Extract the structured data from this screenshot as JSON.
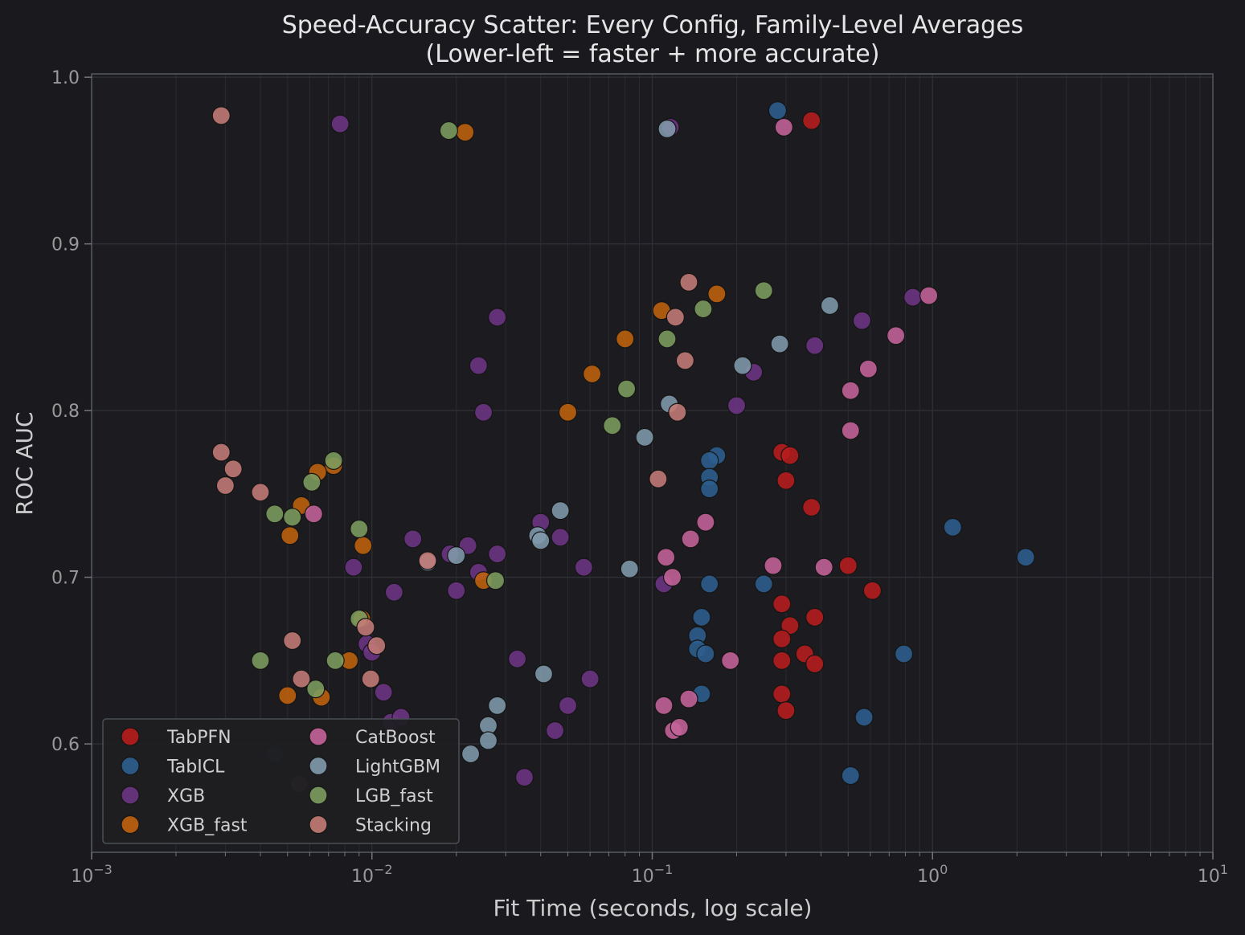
{
  "chart_data": {
    "type": "scatter",
    "title": "Speed-Accuracy Scatter: Every Config, Family-Level Averages",
    "subtitle": "(Lower-left = faster + more accurate)",
    "xlabel": "Fit Time (seconds, log scale)",
    "ylabel": "ROC AUC",
    "xscale": "log",
    "xlim": [
      0.001,
      10
    ],
    "ylim": [
      0.535,
      1.002
    ],
    "xticks": [
      {
        "value": 0.001,
        "base": "10",
        "exp": "−3"
      },
      {
        "value": 0.01,
        "base": "10",
        "exp": "−2"
      },
      {
        "value": 0.1,
        "base": "10",
        "exp": "−1"
      },
      {
        "value": 1,
        "base": "10",
        "exp": "0"
      },
      {
        "value": 10,
        "base": "10",
        "exp": "1"
      }
    ],
    "yticks": [
      {
        "value": 0.6,
        "label": "0.6"
      },
      {
        "value": 0.7,
        "label": "0.7"
      },
      {
        "value": 0.8,
        "label": "0.8"
      },
      {
        "value": 0.9,
        "label": "0.9"
      },
      {
        "value": 1.0,
        "label": "1.0"
      }
    ],
    "grid": true,
    "legend_position": "lower-left",
    "series": [
      {
        "name": "TabPFN",
        "color": "#b71c1c",
        "points": [
          [
            0.37,
            0.974
          ],
          [
            0.29,
            0.775
          ],
          [
            0.31,
            0.773
          ],
          [
            0.3,
            0.758
          ],
          [
            0.37,
            0.742
          ],
          [
            0.5,
            0.707
          ],
          [
            0.61,
            0.692
          ],
          [
            0.29,
            0.684
          ],
          [
            0.31,
            0.671
          ],
          [
            0.38,
            0.676
          ],
          [
            0.29,
            0.663
          ],
          [
            0.29,
            0.65
          ],
          [
            0.35,
            0.654
          ],
          [
            0.38,
            0.648
          ],
          [
            0.29,
            0.63
          ],
          [
            0.3,
            0.62
          ]
        ]
      },
      {
        "name": "TabICL",
        "color": "#2c5f8e",
        "points": [
          [
            0.28,
            0.98
          ],
          [
            0.17,
            0.773
          ],
          [
            0.16,
            0.77
          ],
          [
            0.16,
            0.76
          ],
          [
            0.16,
            0.753
          ],
          [
            1.18,
            0.73
          ],
          [
            2.15,
            0.712
          ],
          [
            0.16,
            0.696
          ],
          [
            0.25,
            0.696
          ],
          [
            0.15,
            0.676
          ],
          [
            0.145,
            0.665
          ],
          [
            0.145,
            0.657
          ],
          [
            0.155,
            0.654
          ],
          [
            0.79,
            0.654
          ],
          [
            0.15,
            0.63
          ],
          [
            0.57,
            0.616
          ],
          [
            0.51,
            0.581
          ]
        ]
      },
      {
        "name": "XGB",
        "color": "#6c3483",
        "points": [
          [
            0.0077,
            0.972
          ],
          [
            0.116,
            0.97
          ],
          [
            0.028,
            0.856
          ],
          [
            0.85,
            0.868
          ],
          [
            0.56,
            0.854
          ],
          [
            0.38,
            0.839
          ],
          [
            0.024,
            0.827
          ],
          [
            0.23,
            0.823
          ],
          [
            0.025,
            0.799
          ],
          [
            0.2,
            0.803
          ],
          [
            0.04,
            0.733
          ],
          [
            0.014,
            0.723
          ],
          [
            0.022,
            0.719
          ],
          [
            0.047,
            0.724
          ],
          [
            0.019,
            0.714
          ],
          [
            0.028,
            0.714
          ],
          [
            0.024,
            0.703
          ],
          [
            0.0086,
            0.706
          ],
          [
            0.057,
            0.706
          ],
          [
            0.012,
            0.691
          ],
          [
            0.02,
            0.692
          ],
          [
            0.11,
            0.696
          ],
          [
            0.0096,
            0.66
          ],
          [
            0.01,
            0.655
          ],
          [
            0.033,
            0.651
          ],
          [
            0.011,
            0.631
          ],
          [
            0.06,
            0.639
          ],
          [
            0.0117,
            0.613
          ],
          [
            0.0127,
            0.616
          ],
          [
            0.05,
            0.623
          ],
          [
            0.045,
            0.608
          ],
          [
            0.035,
            0.58
          ]
        ]
      },
      {
        "name": "XGB_fast",
        "color": "#c0620e",
        "points": [
          [
            0.0215,
            0.967
          ],
          [
            0.17,
            0.87
          ],
          [
            0.108,
            0.86
          ],
          [
            0.08,
            0.843
          ],
          [
            0.061,
            0.822
          ],
          [
            0.05,
            0.799
          ],
          [
            0.0073,
            0.767
          ],
          [
            0.0064,
            0.763
          ],
          [
            0.0056,
            0.743
          ],
          [
            0.0051,
            0.725
          ],
          [
            0.0093,
            0.719
          ],
          [
            0.025,
            0.698
          ],
          [
            0.0092,
            0.675
          ],
          [
            0.0083,
            0.65
          ],
          [
            0.005,
            0.629
          ],
          [
            0.0066,
            0.628
          ]
        ]
      },
      {
        "name": "CatBoost",
        "color": "#c5639a",
        "points": [
          [
            0.295,
            0.97
          ],
          [
            0.97,
            0.869
          ],
          [
            0.74,
            0.845
          ],
          [
            0.59,
            0.825
          ],
          [
            0.51,
            0.812
          ],
          [
            0.51,
            0.788
          ],
          [
            0.155,
            0.733
          ],
          [
            0.137,
            0.723
          ],
          [
            0.112,
            0.712
          ],
          [
            0.118,
            0.7
          ],
          [
            0.27,
            0.707
          ],
          [
            0.41,
            0.706
          ],
          [
            0.0062,
            0.738
          ],
          [
            0.19,
            0.65
          ],
          [
            0.135,
            0.627
          ],
          [
            0.11,
            0.623
          ],
          [
            0.119,
            0.608
          ],
          [
            0.125,
            0.61
          ]
        ]
      },
      {
        "name": "LightGBM",
        "color": "#7f9aab",
        "points": [
          [
            0.113,
            0.969
          ],
          [
            0.43,
            0.863
          ],
          [
            0.285,
            0.84
          ],
          [
            0.21,
            0.827
          ],
          [
            0.115,
            0.804
          ],
          [
            0.094,
            0.784
          ],
          [
            0.047,
            0.74
          ],
          [
            0.039,
            0.725
          ],
          [
            0.04,
            0.722
          ],
          [
            0.02,
            0.713
          ],
          [
            0.0158,
            0.709
          ],
          [
            0.083,
            0.705
          ],
          [
            0.041,
            0.642
          ],
          [
            0.028,
            0.623
          ],
          [
            0.026,
            0.611
          ],
          [
            0.026,
            0.602
          ],
          [
            0.0225,
            0.594
          ]
        ]
      },
      {
        "name": "LGB_fast",
        "color": "#7c9c5e",
        "points": [
          [
            0.0188,
            0.968
          ],
          [
            0.25,
            0.872
          ],
          [
            0.152,
            0.861
          ],
          [
            0.113,
            0.843
          ],
          [
            0.081,
            0.813
          ],
          [
            0.072,
            0.791
          ],
          [
            0.0073,
            0.77
          ],
          [
            0.0061,
            0.757
          ],
          [
            0.0045,
            0.738
          ],
          [
            0.0052,
            0.736
          ],
          [
            0.009,
            0.729
          ],
          [
            0.0276,
            0.698
          ],
          [
            0.009,
            0.675
          ],
          [
            0.004,
            0.65
          ],
          [
            0.0074,
            0.65
          ],
          [
            0.0063,
            0.633
          ]
        ]
      },
      {
        "name": "Stacking",
        "color": "#c47b76",
        "points": [
          [
            0.0029,
            0.977
          ],
          [
            0.135,
            0.877
          ],
          [
            0.121,
            0.856
          ],
          [
            0.131,
            0.83
          ],
          [
            0.123,
            0.799
          ],
          [
            0.105,
            0.759
          ],
          [
            0.0029,
            0.775
          ],
          [
            0.0032,
            0.765
          ],
          [
            0.003,
            0.755
          ],
          [
            0.004,
            0.751
          ],
          [
            0.0158,
            0.71
          ],
          [
            0.0095,
            0.67
          ],
          [
            0.0104,
            0.659
          ],
          [
            0.0052,
            0.662
          ],
          [
            0.0056,
            0.639
          ],
          [
            0.0099,
            0.639
          ]
        ]
      }
    ],
    "faded_points": [
      {
        "series": "Stacking",
        "x": 0.0055,
        "y": 0.576
      },
      {
        "series": "TabICL",
        "x": 0.0045,
        "y": 0.594
      }
    ]
  }
}
